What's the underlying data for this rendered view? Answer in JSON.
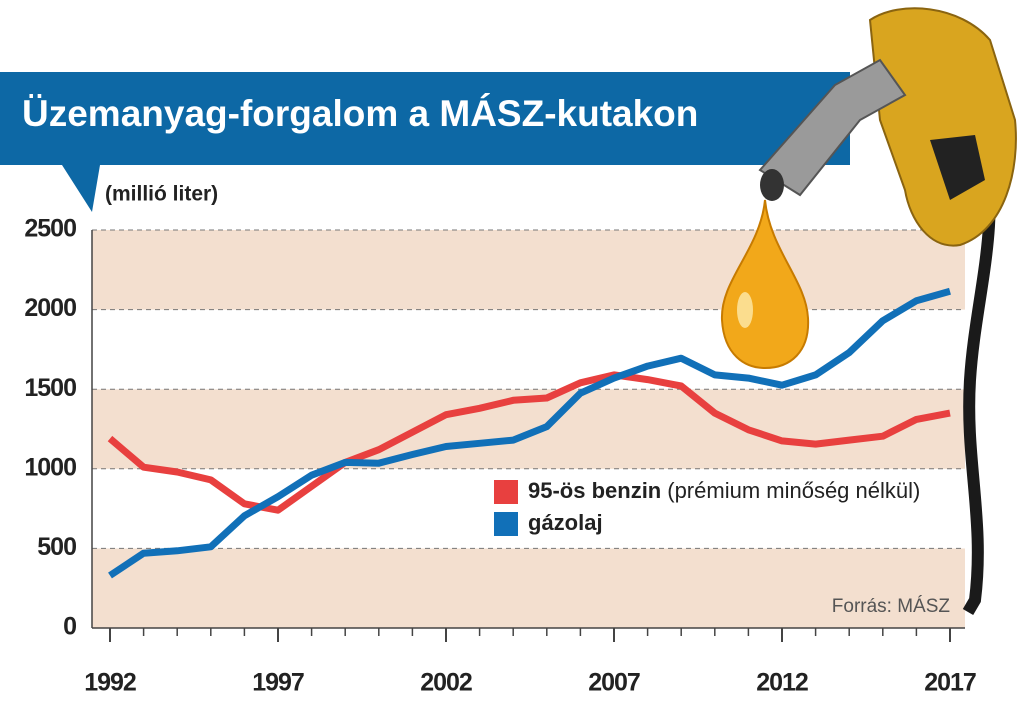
{
  "chart_data": {
    "type": "line",
    "title": "Üzemanyag-forgalom a MÁSZ-kutakon",
    "y_label": "(millió liter)",
    "source": "Forrás: MÁSZ",
    "x": [
      1992,
      1993,
      1994,
      1995,
      1996,
      1997,
      1998,
      1999,
      2000,
      2001,
      2002,
      2003,
      2004,
      2005,
      2006,
      2007,
      2008,
      2009,
      2010,
      2011,
      2012,
      2013,
      2014,
      2015,
      2016,
      2017
    ],
    "xlim": [
      1992,
      2017
    ],
    "xticks": [
      1992,
      1997,
      2002,
      2007,
      2012,
      2017
    ],
    "ylim": [
      0,
      2500
    ],
    "yticks": [
      0,
      500,
      1000,
      1500,
      2000,
      2500
    ],
    "grid": true,
    "series": [
      {
        "name": "95-ös benzin",
        "note": "(prémium minőség nélkül)",
        "color": "#e8403f",
        "values": [
          1190,
          1010,
          980,
          930,
          780,
          740,
          890,
          1040,
          1120,
          1230,
          1340,
          1380,
          1430,
          1445,
          1540,
          1590,
          1560,
          1520,
          1350,
          1245,
          1175,
          1155,
          1180,
          1205,
          1310,
          1350
        ]
      },
      {
        "name": "gázolaj",
        "color": "#1170b8",
        "values": [
          330,
          470,
          485,
          510,
          705,
          825,
          960,
          1040,
          1035,
          1090,
          1140,
          1160,
          1180,
          1265,
          1475,
          1570,
          1645,
          1695,
          1590,
          1570,
          1525,
          1590,
          1730,
          1930,
          2055,
          2115
        ]
      }
    ]
  }
}
